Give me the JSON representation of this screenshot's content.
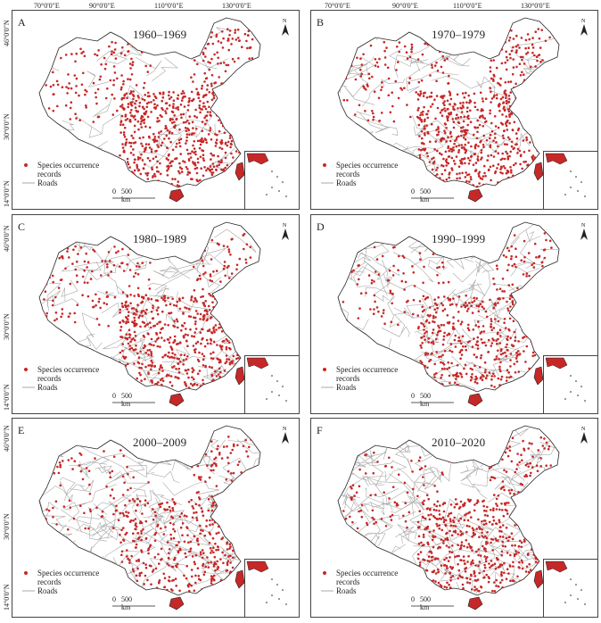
{
  "figure": {
    "lon_labels": [
      "70°0'0\"E",
      "90°0'0\"E",
      "110°0'0\"E",
      "130°0'0\"E"
    ],
    "lat_labels": [
      "46°0'0\"N",
      "30°0'0\"N",
      "14°0'0\"N"
    ],
    "colors": {
      "points": "#c62828",
      "roads": "#a8a8a8",
      "outline": "#222222"
    }
  },
  "panels": [
    {
      "letter": "A",
      "period": "1960–1969",
      "legend_points": "Species occurrence",
      "legend_points2": "records",
      "legend_roads": "Roads",
      "scale_zero": "0",
      "scale_label": "500 km",
      "north": "N"
    },
    {
      "letter": "B",
      "period": "1970–1979",
      "legend_points": "Species occurrence",
      "legend_points2": "records",
      "legend_roads": "Roads",
      "scale_zero": "0",
      "scale_label": "500 km",
      "north": "N"
    },
    {
      "letter": "C",
      "period": "1980–1989",
      "legend_points": "Species occurrence",
      "legend_points2": "records",
      "legend_roads": "Roads",
      "scale_zero": "0",
      "scale_label": "500 km",
      "north": "N"
    },
    {
      "letter": "D",
      "period": "1990–1999",
      "legend_points": "Species occurrence",
      "legend_points2": "records",
      "legend_roads": "Roads",
      "scale_zero": "0",
      "scale_label": "500 km",
      "north": "N"
    },
    {
      "letter": "E",
      "period": "2000–2009",
      "legend_points": "Species occurrence",
      "legend_points2": "records",
      "legend_roads": "Roads",
      "scale_zero": "0",
      "scale_label": "500 km",
      "north": "N"
    },
    {
      "letter": "F",
      "period": "2010–2020",
      "legend_points": "Species occurrence",
      "legend_points2": "records",
      "legend_roads": "Roads",
      "scale_zero": "0",
      "scale_label": "500 km",
      "north": "N"
    }
  ]
}
